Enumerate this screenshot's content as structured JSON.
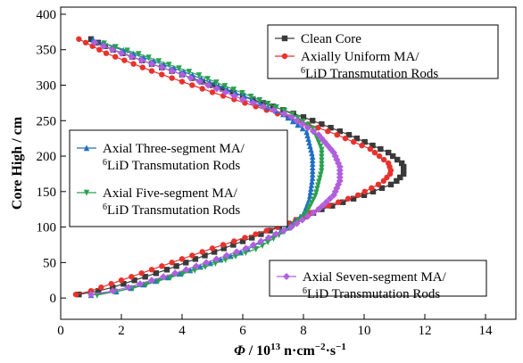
{
  "chart_data": {
    "type": "line",
    "xlabel": {
      "italic": "Φ",
      "rest": " / 10",
      "sup1": "13",
      "unit1": " n·cm",
      "sup2": "−2",
      "unit2": "·s",
      "sup3": "−1"
    },
    "ylabel": "Core High / cm",
    "xlim": [
      0,
      15
    ],
    "ylim": [
      -30,
      410
    ],
    "xticks": [
      "0",
      "2",
      "4",
      "6",
      "8",
      "10",
      "12",
      "14"
    ],
    "yticks": [
      "0",
      "50",
      "100",
      "150",
      "200",
      "250",
      "300",
      "350",
      "400"
    ],
    "grid": false,
    "legend_groups": [
      {
        "position": "top-right",
        "items": [
          0,
          1
        ]
      },
      {
        "position": "middle-left",
        "items": [
          2,
          3
        ]
      },
      {
        "position": "bottom-right",
        "items": [
          4
        ]
      }
    ],
    "series": [
      {
        "name_line1": "Clean Core",
        "name_line2": "",
        "color": "#3a3a3a",
        "marker": "square",
        "knots": [
          [
            0.6,
            5
          ],
          [
            1.5,
            12
          ],
          [
            3.5,
            40
          ],
          [
            6.0,
            80
          ],
          [
            7.5,
            105
          ],
          [
            8.6,
            125
          ],
          [
            10.0,
            145
          ],
          [
            11.0,
            162
          ],
          [
            11.3,
            175
          ],
          [
            11.3,
            188
          ],
          [
            10.8,
            205
          ],
          [
            9.5,
            230
          ],
          [
            8.0,
            255
          ],
          [
            7.0,
            270
          ],
          [
            5.0,
            300
          ],
          [
            3.0,
            330
          ],
          [
            1.6,
            352
          ],
          [
            1.0,
            365
          ]
        ]
      },
      {
        "name_line1": "Axially Uniform MA/",
        "name_line2": "LiD Transmutation Rods",
        "name_sup": "6",
        "color": "#e8322d",
        "marker": "circle",
        "knots": [
          [
            0.5,
            5
          ],
          [
            1.0,
            10
          ],
          [
            3.0,
            40
          ],
          [
            5.0,
            70
          ],
          [
            7.5,
            105
          ],
          [
            8.5,
            125
          ],
          [
            9.8,
            145
          ],
          [
            10.6,
            163
          ],
          [
            10.9,
            177
          ],
          [
            10.8,
            190
          ],
          [
            10.2,
            210
          ],
          [
            9.0,
            232
          ],
          [
            7.5,
            255
          ],
          [
            5.0,
            290
          ],
          [
            3.0,
            320
          ],
          [
            1.5,
            345
          ],
          [
            0.6,
            365
          ]
        ]
      },
      {
        "name_line1": "Axial Three-segment MA/",
        "name_line2": "LiD Transmutation Rods",
        "name_sup": "6",
        "color": "#1f6fc4",
        "marker": "triangle-up",
        "knots": [
          [
            1.0,
            4
          ],
          [
            2.0,
            10
          ],
          [
            4.0,
            35
          ],
          [
            6.0,
            65
          ],
          [
            7.5,
            100
          ],
          [
            8.0,
            118
          ],
          [
            8.2,
            140
          ],
          [
            8.3,
            170
          ],
          [
            8.3,
            200
          ],
          [
            8.1,
            235
          ],
          [
            7.3,
            260
          ],
          [
            6.0,
            285
          ],
          [
            4.0,
            320
          ],
          [
            2.0,
            350
          ],
          [
            1.0,
            365
          ]
        ]
      },
      {
        "name_line1": "Axial Five-segment MA/",
        "name_line2": "LiD Transmutation Rods",
        "name_sup": "6",
        "color": "#2aa150",
        "marker": "triangle-down",
        "knots": [
          [
            1.2,
            4
          ],
          [
            2.5,
            15
          ],
          [
            4.5,
            40
          ],
          [
            6.5,
            70
          ],
          [
            7.6,
            100
          ],
          [
            8.1,
            120
          ],
          [
            8.4,
            145
          ],
          [
            8.6,
            180
          ],
          [
            8.6,
            210
          ],
          [
            8.3,
            240
          ],
          [
            7.6,
            260
          ],
          [
            6.5,
            280
          ],
          [
            4.5,
            315
          ],
          [
            2.5,
            345
          ],
          [
            1.2,
            362
          ]
        ]
      },
      {
        "name_line1": "Axial Seven-segment MA/",
        "name_line2": "LiD Transmutation Rods",
        "name_sup": "6",
        "color": "#b05fdd",
        "marker": "diamond",
        "knots": [
          [
            1.0,
            5
          ],
          [
            2.0,
            12
          ],
          [
            4.0,
            38
          ],
          [
            6.0,
            68
          ],
          [
            7.6,
            100
          ],
          [
            8.5,
            125
          ],
          [
            9.0,
            145
          ],
          [
            9.2,
            165
          ],
          [
            9.2,
            185
          ],
          [
            9.0,
            205
          ],
          [
            8.5,
            230
          ],
          [
            7.5,
            258
          ],
          [
            6.0,
            280
          ],
          [
            4.0,
            315
          ],
          [
            2.0,
            345
          ],
          [
            1.0,
            362
          ]
        ]
      }
    ]
  }
}
